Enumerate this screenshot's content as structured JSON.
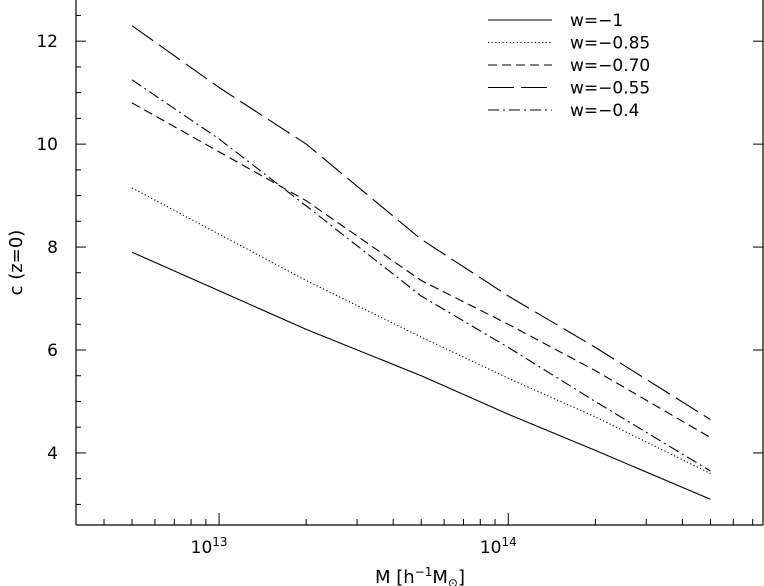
{
  "chart_data": {
    "type": "line",
    "xscale": "log",
    "xlim": [
      3200000000000.0,
      760000000000000.0
    ],
    "ylim": [
      2.6,
      12.8
    ],
    "yticks": [
      4,
      6,
      8,
      10,
      12
    ],
    "xticks": [
      {
        "value": 10000000000000.0,
        "base": "10",
        "exp": "13"
      },
      {
        "value": 100000000000000.0,
        "base": "10",
        "exp": "14"
      }
    ],
    "xlabel": {
      "prefix": "M  [h",
      "sup": "−1",
      "main": "M",
      "sub": "⊙",
      "suffix": "]"
    },
    "ylabel": "c (z=0)",
    "legend_position": "top-right",
    "series": [
      {
        "name": "w=−1",
        "dash": "",
        "x": [
          5000000000000.0,
          10000000000000.0,
          20000000000000.0,
          50000000000000.0,
          100000000000000.0,
          200000000000000.0,
          500000000000000.0
        ],
        "y": [
          7.9,
          7.15,
          6.4,
          5.5,
          4.75,
          4.05,
          3.1
        ]
      },
      {
        "name": "w=−0.85",
        "dash": "1.2 2.4",
        "x": [
          5000000000000.0,
          10000000000000.0,
          20000000000000.0,
          50000000000000.0,
          100000000000000.0,
          200000000000000.0,
          500000000000000.0
        ],
        "y": [
          9.15,
          8.25,
          7.35,
          6.25,
          5.45,
          4.7,
          3.6
        ]
      },
      {
        "name": "w=−0.70",
        "dash": "9 5",
        "x": [
          5000000000000.0,
          10000000000000.0,
          20000000000000.0,
          50000000000000.0,
          100000000000000.0,
          200000000000000.0,
          500000000000000.0
        ],
        "y": [
          10.8,
          9.85,
          8.9,
          7.35,
          6.5,
          5.6,
          4.3
        ]
      },
      {
        "name": "w=−0.55",
        "dash": "26 7",
        "x": [
          5000000000000.0,
          10000000000000.0,
          20000000000000.0,
          50000000000000.0,
          100000000000000.0,
          200000000000000.0,
          500000000000000.0
        ],
        "y": [
          12.3,
          11.1,
          10.0,
          8.15,
          7.05,
          6.05,
          4.65
        ]
      },
      {
        "name": "w=−0.4",
        "dash": "11 4 2 4",
        "x": [
          5000000000000.0,
          10000000000000.0,
          20000000000000.0,
          50000000000000.0,
          100000000000000.0,
          200000000000000.0,
          500000000000000.0
        ],
        "y": [
          11.25,
          10.1,
          8.8,
          7.05,
          6.05,
          5.0,
          3.65
        ]
      }
    ]
  }
}
